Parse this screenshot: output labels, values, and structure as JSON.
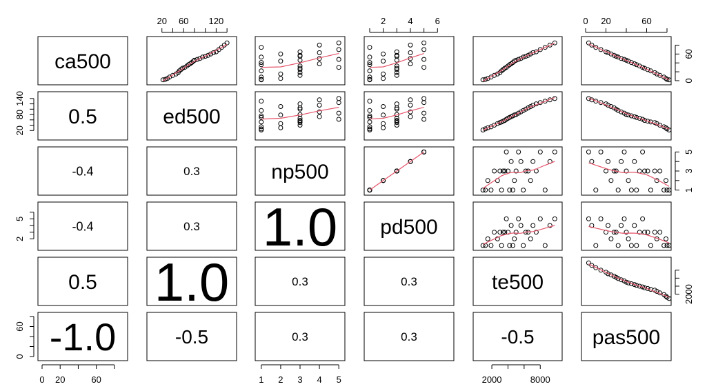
{
  "chart_data": {
    "type": "scatter-matrix",
    "variables": [
      "ca500",
      "ed500",
      "np500",
      "pd500",
      "te500",
      "pas500"
    ],
    "correlations": {
      "ed500|ca500": "0.5",
      "np500|ca500": "-0.4",
      "np500|ed500": "0.3",
      "pd500|ca500": "-0.4",
      "pd500|ed500": "0.3",
      "pd500|np500": "1.0",
      "te500|ca500": "0.5",
      "te500|ed500": "1.0",
      "te500|np500": "0.3",
      "te500|pd500": "0.3",
      "pas500|ca500": "-1.0",
      "pas500|ed500": "-0.5",
      "pas500|np500": "0.3",
      "pas500|pd500": "0.3",
      "pas500|te500": "-0.5"
    },
    "axes": {
      "ca500": {
        "range": [
          0,
          90
        ],
        "ticks": [
          0,
          20,
          60
        ],
        "minor_ticks": [
          0,
          20,
          40,
          60,
          80
        ]
      },
      "ed500": {
        "range": [
          0,
          150
        ],
        "ticks": [
          20,
          60,
          120
        ],
        "minor_ticks": [
          20,
          40,
          60,
          80,
          100,
          120,
          140
        ]
      },
      "np500": {
        "range": [
          0.9,
          5.1
        ],
        "ticks": [
          1,
          2,
          3,
          4,
          5
        ],
        "minor_ticks": [
          1,
          2,
          3,
          4,
          5
        ]
      },
      "pd500": {
        "range": [
          0.9,
          6.9
        ],
        "ticks": [
          2,
          4,
          6
        ],
        "minor_ticks": [
          1,
          2,
          3,
          4,
          5,
          6
        ]
      },
      "te500": {
        "range": [
          200,
          10200
        ],
        "ticks": [
          2000,
          8000
        ],
        "minor_ticks": [
          2000,
          4000,
          6000,
          8000
        ]
      },
      "pas500": {
        "range": [
          0,
          80
        ],
        "ticks": [
          0,
          20,
          60
        ],
        "minor_ticks": [
          0,
          20,
          40,
          60,
          80
        ]
      }
    },
    "y_tick_labels": {
      "ca500": [
        "0",
        "60"
      ],
      "ed500": [
        "20",
        "80",
        "140"
      ],
      "np500": [
        "1",
        "3",
        "5"
      ],
      "pd500": [
        "2",
        "5"
      ],
      "te500": [
        "2000"
      ],
      "pas500": [
        "0",
        "60"
      ]
    },
    "y_ticks": {
      "ca500": {
        "minor": [
          0,
          20,
          40,
          60,
          80
        ],
        "labeled": [
          0,
          60
        ]
      },
      "ed500": {
        "minor": [
          20,
          40,
          60,
          80,
          100,
          120,
          140
        ],
        "labeled": [
          20,
          80,
          140
        ]
      },
      "np500": {
        "minor": [
          1,
          2,
          3,
          4,
          5
        ],
        "labeled": [
          1,
          3,
          5
        ]
      },
      "pd500": {
        "minor": [
          2,
          3,
          4,
          5,
          6
        ],
        "labeled": [
          2,
          5
        ]
      },
      "te500": {
        "minor": [
          2000,
          4000,
          6000,
          8000
        ],
        "labeled": [
          2000
        ]
      },
      "pas500": {
        "minor": [
          0,
          20,
          40,
          60,
          80
        ],
        "labeled": [
          0,
          60
        ]
      }
    },
    "observations": [
      {
        "ca500": 2,
        "ed500": 22,
        "np500": 1,
        "pd500": 1,
        "te500": 900,
        "pas500": 82
      },
      {
        "ca500": 3,
        "ed500": 26,
        "np500": 1,
        "pd500": 1,
        "te500": 1200,
        "pas500": 80
      },
      {
        "ca500": 5,
        "ed500": 30,
        "np500": 2,
        "pd500": 2,
        "te500": 1500,
        "pas500": 79
      },
      {
        "ca500": 8,
        "ed500": 34,
        "np500": 1,
        "pd500": 1,
        "te500": 1900,
        "pas500": 77
      },
      {
        "ca500": 12,
        "ed500": 40,
        "np500": 3,
        "pd500": 3,
        "te500": 2300,
        "pas500": 73
      },
      {
        "ca500": 15,
        "ed500": 46,
        "np500": 2,
        "pd500": 2,
        "te500": 2700,
        "pas500": 70
      },
      {
        "ca500": 18,
        "ed500": 50,
        "np500": 3,
        "pd500": 3,
        "te500": 3000,
        "pas500": 68
      },
      {
        "ca500": 22,
        "ed500": 52,
        "np500": 1,
        "pd500": 1,
        "te500": 3200,
        "pas500": 64
      },
      {
        "ca500": 25,
        "ed500": 55,
        "np500": 3,
        "pd500": 3,
        "te500": 3400,
        "pas500": 61
      },
      {
        "ca500": 28,
        "ed500": 58,
        "np500": 3,
        "pd500": 3,
        "te500": 3600,
        "pas500": 58
      },
      {
        "ca500": 30,
        "ed500": 62,
        "np500": 5,
        "pd500": 5,
        "te500": 3800,
        "pas500": 56
      },
      {
        "ca500": 33,
        "ed500": 66,
        "np500": 3,
        "pd500": 3,
        "te500": 4000,
        "pas500": 53
      },
      {
        "ca500": 36,
        "ed500": 69,
        "np500": 1,
        "pd500": 1,
        "te500": 4200,
        "pas500": 50
      },
      {
        "ca500": 38,
        "ed500": 72,
        "np500": 4,
        "pd500": 4,
        "te500": 4400,
        "pas500": 48
      },
      {
        "ca500": 41,
        "ed500": 75,
        "np500": 1,
        "pd500": 1,
        "te500": 4600,
        "pas500": 45
      },
      {
        "ca500": 44,
        "ed500": 78,
        "np500": 2,
        "pd500": 2,
        "te500": 4800,
        "pas500": 42
      },
      {
        "ca500": 46,
        "ed500": 80,
        "np500": 3,
        "pd500": 3,
        "te500": 5000,
        "pas500": 40
      },
      {
        "ca500": 48,
        "ed500": 85,
        "np500": 5,
        "pd500": 5,
        "te500": 5300,
        "pas500": 38
      },
      {
        "ca500": 50,
        "ed500": 90,
        "np500": 4,
        "pd500": 4,
        "te500": 5600,
        "pas500": 35
      },
      {
        "ca500": 53,
        "ed500": 95,
        "np500": 1,
        "pd500": 1,
        "te500": 5900,
        "pas500": 32
      },
      {
        "ca500": 55,
        "ed500": 100,
        "np500": 3,
        "pd500": 3,
        "te500": 6200,
        "pas500": 30
      },
      {
        "ca500": 57,
        "ed500": 105,
        "np500": 3,
        "pd500": 3,
        "te500": 6500,
        "pas500": 28
      },
      {
        "ca500": 60,
        "ed500": 110,
        "np500": 2,
        "pd500": 2,
        "te500": 6800,
        "pas500": 25
      },
      {
        "ca500": 63,
        "ed500": 115,
        "np500": 4,
        "pd500": 4,
        "te500": 7100,
        "pas500": 22
      },
      {
        "ca500": 65,
        "ed500": 120,
        "np500": 3,
        "pd500": 3,
        "te500": 7500,
        "pas500": 20
      },
      {
        "ca500": 70,
        "ed500": 125,
        "np500": 5,
        "pd500": 5,
        "te500": 8000,
        "pas500": 15
      },
      {
        "ca500": 75,
        "ed500": 130,
        "np500": 1,
        "pd500": 1,
        "te500": 8600,
        "pas500": 10
      },
      {
        "ca500": 80,
        "ed500": 135,
        "np500": 4,
        "pd500": 4,
        "te500": 9200,
        "pas500": 6
      },
      {
        "ca500": 85,
        "ed500": 140,
        "np500": 5,
        "pd500": 5,
        "te500": 9800,
        "pas500": 3
      }
    ],
    "style": {
      "point_color": "#000000",
      "smooth_color": "#e5546a",
      "box_color": "#000000"
    },
    "title": "",
    "xlabel": "",
    "ylabel": ""
  }
}
